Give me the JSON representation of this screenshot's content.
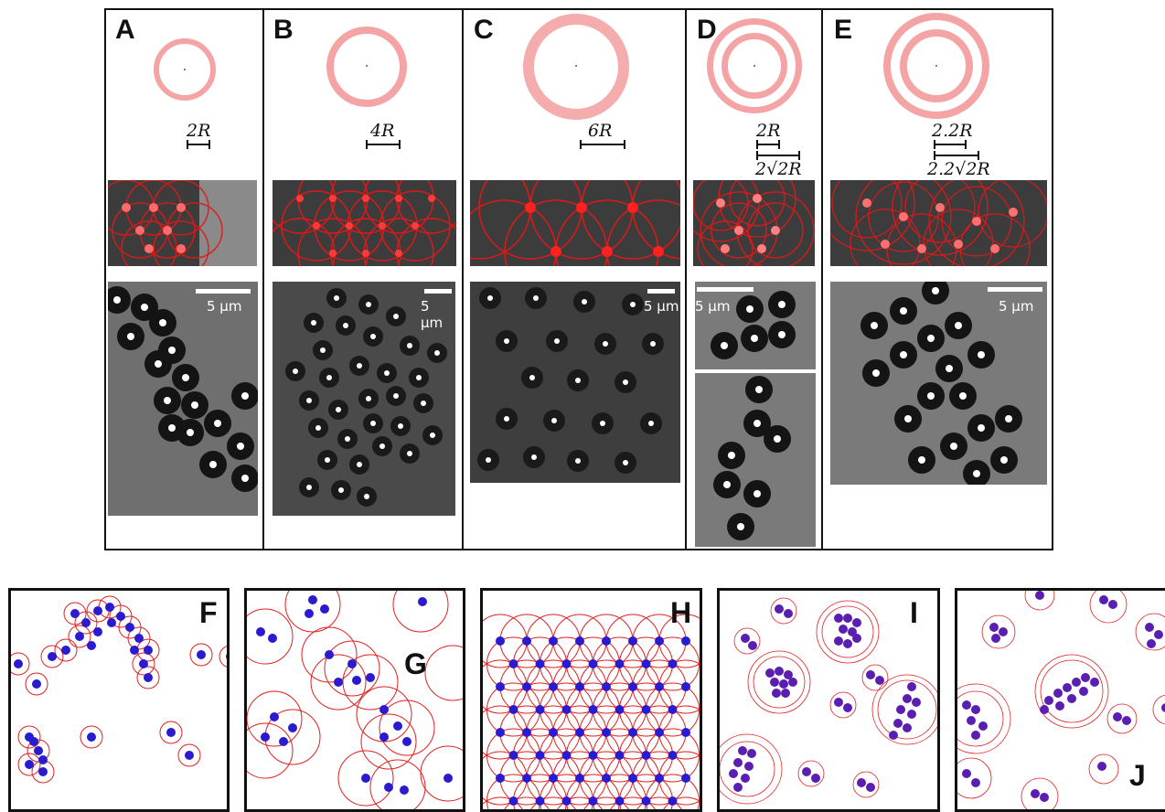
{
  "panels_top": [
    {
      "label": "A",
      "scale": "2R"
    },
    {
      "label": "B",
      "scale": "4R"
    },
    {
      "label": "C",
      "scale": "6R"
    },
    {
      "label": "D",
      "scale": "2R",
      "scale2": "2√2R"
    },
    {
      "label": "E",
      "scale": "2.2R",
      "scale2": "2.2√2R"
    }
  ],
  "micro_scale": "5 μm",
  "panels_bottom": [
    "F",
    "G",
    "H",
    "I",
    "J"
  ],
  "colors": {
    "ring": "#e02020",
    "particle": "#2a1ad0",
    "frame": "#111111"
  }
}
